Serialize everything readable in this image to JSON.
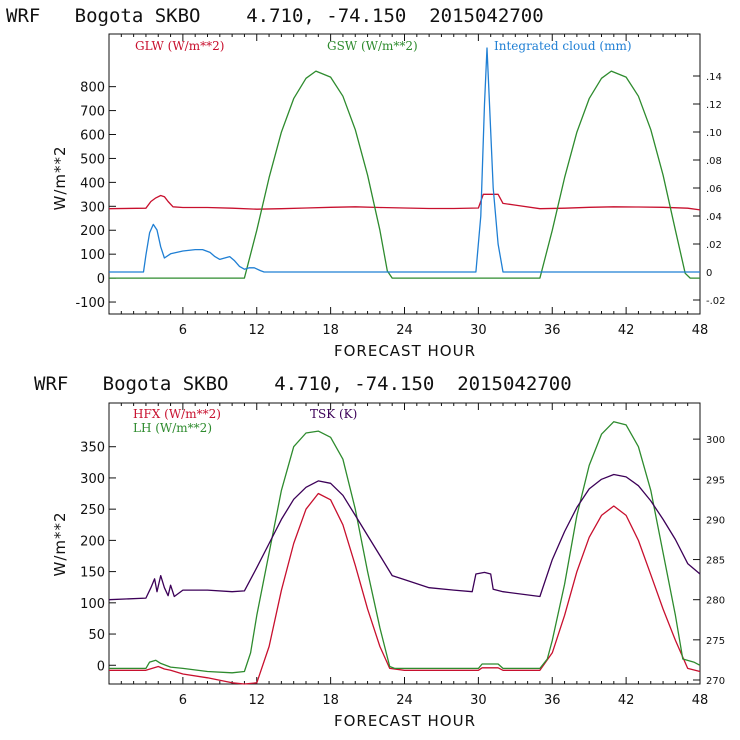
{
  "chart_data": [
    {
      "type": "line",
      "title": "WRF   Bogota SKBO    4.710, -74.150  2015042700",
      "xlabel": "FORECAST HOUR",
      "ylabel": "W/m**2",
      "xlim": [
        0,
        48
      ],
      "ylim": [
        -150,
        1020
      ],
      "y2lim": [
        -0.03,
        0.17
      ],
      "xticks": [
        6,
        12,
        18,
        24,
        30,
        36,
        42,
        48
      ],
      "yticks": [
        -100,
        0,
        100,
        200,
        300,
        400,
        500,
        600,
        700,
        800
      ],
      "yticklabels": [
        "-100",
        "0",
        "100",
        "200",
        "300",
        "400",
        "500",
        "600",
        "700",
        "800"
      ],
      "y2ticks": [
        -0.02,
        0,
        0.02,
        0.04,
        0.06,
        0.08,
        0.1,
        0.12,
        0.14
      ],
      "y2ticklabels": [
        "-.02",
        "0",
        ".02",
        ".04",
        ".06",
        ".08",
        ".10",
        ".12",
        ".14"
      ],
      "series": [
        {
          "name": "GLW (W/m**2)",
          "axis": "left",
          "color": "#c8102e",
          "points": [
            [
              0,
              290
            ],
            [
              3,
              292
            ],
            [
              3.4,
              320
            ],
            [
              3.8,
              335
            ],
            [
              4.2,
              345
            ],
            [
              4.5,
              340
            ],
            [
              4.8,
              320
            ],
            [
              5.2,
              298
            ],
            [
              6,
              295
            ],
            [
              8,
              295
            ],
            [
              10,
              292
            ],
            [
              12,
              288
            ],
            [
              14,
              290
            ],
            [
              16,
              293
            ],
            [
              18,
              296
            ],
            [
              20,
              298
            ],
            [
              22,
              295
            ],
            [
              24,
              293
            ],
            [
              26,
              291
            ],
            [
              28,
              291
            ],
            [
              30,
              293
            ],
            [
              30.4,
              350
            ],
            [
              31.6,
              350
            ],
            [
              32,
              312
            ],
            [
              33,
              305
            ],
            [
              35,
              290
            ],
            [
              37,
              292
            ],
            [
              39,
              296
            ],
            [
              41,
              298
            ],
            [
              43,
              297
            ],
            [
              45,
              296
            ],
            [
              47,
              292
            ],
            [
              48,
              285
            ]
          ]
        },
        {
          "name": "GSW (W/m**2)",
          "axis": "left",
          "color": "#2e8b2e",
          "points": [
            [
              0,
              0
            ],
            [
              11,
              0
            ],
            [
              12,
              200
            ],
            [
              13,
              420
            ],
            [
              14,
              610
            ],
            [
              15,
              750
            ],
            [
              16,
              835
            ],
            [
              16.8,
              865
            ],
            [
              18,
              840
            ],
            [
              19,
              760
            ],
            [
              20,
              620
            ],
            [
              21,
              430
            ],
            [
              22,
              200
            ],
            [
              22.6,
              30
            ],
            [
              23,
              0
            ],
            [
              35,
              0
            ],
            [
              36,
              200
            ],
            [
              37,
              420
            ],
            [
              38,
              610
            ],
            [
              39,
              750
            ],
            [
              40,
              835
            ],
            [
              40.8,
              865
            ],
            [
              42,
              840
            ],
            [
              43,
              760
            ],
            [
              44,
              620
            ],
            [
              45,
              430
            ],
            [
              46,
              200
            ],
            [
              46.8,
              20
            ],
            [
              47.2,
              0
            ],
            [
              48,
              0
            ]
          ]
        },
        {
          "name": "Integrated cloud (mm)",
          "axis": "right",
          "color": "#1f7fd4",
          "points": [
            [
              0,
              0
            ],
            [
              2.8,
              0
            ],
            [
              3,
              0.012
            ],
            [
              3.3,
              0.028
            ],
            [
              3.6,
              0.034
            ],
            [
              3.9,
              0.03
            ],
            [
              4.2,
              0.018
            ],
            [
              4.5,
              0.01
            ],
            [
              5,
              0.013
            ],
            [
              6,
              0.015
            ],
            [
              7,
              0.016
            ],
            [
              7.6,
              0.016
            ],
            [
              8.2,
              0.014
            ],
            [
              8.6,
              0.011
            ],
            [
              9,
              0.009
            ],
            [
              9.4,
              0.01
            ],
            [
              9.8,
              0.011
            ],
            [
              10.2,
              0.008
            ],
            [
              10.6,
              0.004
            ],
            [
              11,
              0.002
            ],
            [
              11.4,
              0.003
            ],
            [
              11.8,
              0.003
            ],
            [
              12.3,
              0.001
            ],
            [
              12.6,
              0
            ],
            [
              24,
              0
            ],
            [
              29.8,
              0
            ],
            [
              30.2,
              0.04
            ],
            [
              30.5,
              0.12
            ],
            [
              30.7,
              0.16
            ],
            [
              30.9,
              0.12
            ],
            [
              31.2,
              0.06
            ],
            [
              31.6,
              0.02
            ],
            [
              32,
              0
            ],
            [
              48,
              0
            ]
          ]
        }
      ]
    },
    {
      "type": "line",
      "title": "WRF   Bogota SKBO    4.710, -74.150  2015042700",
      "xlabel": "FORECAST HOUR",
      "ylabel": "W/m**2",
      "xlim": [
        0,
        48
      ],
      "ylim": [
        -30,
        420
      ],
      "y2lim": [
        269.5,
        304.5
      ],
      "xticks": [
        6,
        12,
        18,
        24,
        30,
        36,
        42,
        48
      ],
      "yticks": [
        0,
        50,
        100,
        150,
        200,
        250,
        300,
        350
      ],
      "yticklabels": [
        "0",
        "50",
        "100",
        "150",
        "200",
        "250",
        "300",
        "350"
      ],
      "y2ticks": [
        270,
        275,
        280,
        285,
        290,
        295,
        300
      ],
      "y2ticklabels": [
        "270",
        "275",
        "280",
        "285",
        "290",
        "295",
        "300"
      ],
      "series": [
        {
          "name": "HFX (W/m**2)",
          "axis": "left",
          "color": "#c8102e",
          "points": [
            [
              0,
              -8
            ],
            [
              3,
              -8
            ],
            [
              3.5,
              -5
            ],
            [
              4,
              -2
            ],
            [
              4.5,
              -6
            ],
            [
              5,
              -8
            ],
            [
              6,
              -14
            ],
            [
              8,
              -20
            ],
            [
              10,
              -28
            ],
            [
              11,
              -30
            ],
            [
              12,
              -28
            ],
            [
              13,
              30
            ],
            [
              14,
              120
            ],
            [
              15,
              195
            ],
            [
              16,
              250
            ],
            [
              17,
              275
            ],
            [
              18,
              265
            ],
            [
              19,
              225
            ],
            [
              20,
              160
            ],
            [
              21,
              90
            ],
            [
              22,
              30
            ],
            [
              22.8,
              -5
            ],
            [
              24,
              -8
            ],
            [
              30,
              -8
            ],
            [
              30.3,
              -4
            ],
            [
              31.6,
              -4
            ],
            [
              32,
              -8
            ],
            [
              35,
              -8
            ],
            [
              36,
              20
            ],
            [
              37,
              80
            ],
            [
              38,
              150
            ],
            [
              39,
              205
            ],
            [
              40,
              240
            ],
            [
              41,
              255
            ],
            [
              42,
              240
            ],
            [
              43,
              200
            ],
            [
              44,
              145
            ],
            [
              45,
              90
            ],
            [
              46,
              40
            ],
            [
              47,
              -5
            ],
            [
              48,
              -10
            ]
          ]
        },
        {
          "name": "LH (W/m**2)",
          "axis": "left",
          "color": "#2e8b2e",
          "points": [
            [
              0,
              -5
            ],
            [
              3,
              -5
            ],
            [
              3.3,
              5
            ],
            [
              3.8,
              8
            ],
            [
              4.2,
              3
            ],
            [
              5,
              -3
            ],
            [
              6,
              -5
            ],
            [
              8,
              -10
            ],
            [
              10,
              -12
            ],
            [
              11,
              -10
            ],
            [
              11.5,
              20
            ],
            [
              12,
              80
            ],
            [
              13,
              180
            ],
            [
              14,
              280
            ],
            [
              15,
              350
            ],
            [
              16,
              372
            ],
            [
              17,
              375
            ],
            [
              18,
              365
            ],
            [
              19,
              330
            ],
            [
              20,
              250
            ],
            [
              21,
              150
            ],
            [
              22,
              60
            ],
            [
              22.8,
              -2
            ],
            [
              23.2,
              -5
            ],
            [
              30,
              -5
            ],
            [
              30.3,
              2
            ],
            [
              31.6,
              2
            ],
            [
              32,
              -5
            ],
            [
              35,
              -5
            ],
            [
              35.6,
              10
            ],
            [
              36,
              40
            ],
            [
              37,
              130
            ],
            [
              38,
              240
            ],
            [
              39,
              320
            ],
            [
              40,
              370
            ],
            [
              41,
              390
            ],
            [
              42,
              385
            ],
            [
              43,
              350
            ],
            [
              44,
              280
            ],
            [
              45,
              180
            ],
            [
              46,
              80
            ],
            [
              46.6,
              10
            ],
            [
              47.5,
              5
            ],
            [
              48,
              0
            ]
          ]
        },
        {
          "name": "TSK (K)",
          "axis": "right",
          "color": "#3c0058",
          "points": [
            [
              0,
              280
            ],
            [
              3,
              280.2
            ],
            [
              3.4,
              281.5
            ],
            [
              3.7,
              282.6
            ],
            [
              3.9,
              281
            ],
            [
              4.2,
              283
            ],
            [
              4.5,
              281.5
            ],
            [
              4.8,
              280.5
            ],
            [
              5,
              281.8
            ],
            [
              5.3,
              280.4
            ],
            [
              6,
              281.2
            ],
            [
              8,
              281.2
            ],
            [
              10,
              281
            ],
            [
              11,
              281.1
            ],
            [
              12,
              284
            ],
            [
              13,
              287
            ],
            [
              14,
              290
            ],
            [
              15,
              292.5
            ],
            [
              16,
              294
            ],
            [
              17,
              294.8
            ],
            [
              18,
              294.5
            ],
            [
              19,
              293
            ],
            [
              20,
              290.5
            ],
            [
              21,
              288
            ],
            [
              22,
              285.5
            ],
            [
              23,
              283
            ],
            [
              24,
              282.5
            ],
            [
              26,
              281.5
            ],
            [
              28,
              281.2
            ],
            [
              29.5,
              281
            ],
            [
              29.8,
              283.2
            ],
            [
              30.5,
              283.4
            ],
            [
              31,
              283.2
            ],
            [
              31.2,
              281.3
            ],
            [
              32,
              281
            ],
            [
              35,
              280.4
            ],
            [
              36,
              285
            ],
            [
              37,
              288.5
            ],
            [
              38,
              291.5
            ],
            [
              39,
              293.8
            ],
            [
              40,
              295
            ],
            [
              41,
              295.6
            ],
            [
              42,
              295.3
            ],
            [
              43,
              294.2
            ],
            [
              44,
              292.3
            ],
            [
              45,
              290
            ],
            [
              46,
              287.5
            ],
            [
              47,
              284.5
            ],
            [
              48,
              283.2
            ]
          ]
        }
      ]
    }
  ]
}
